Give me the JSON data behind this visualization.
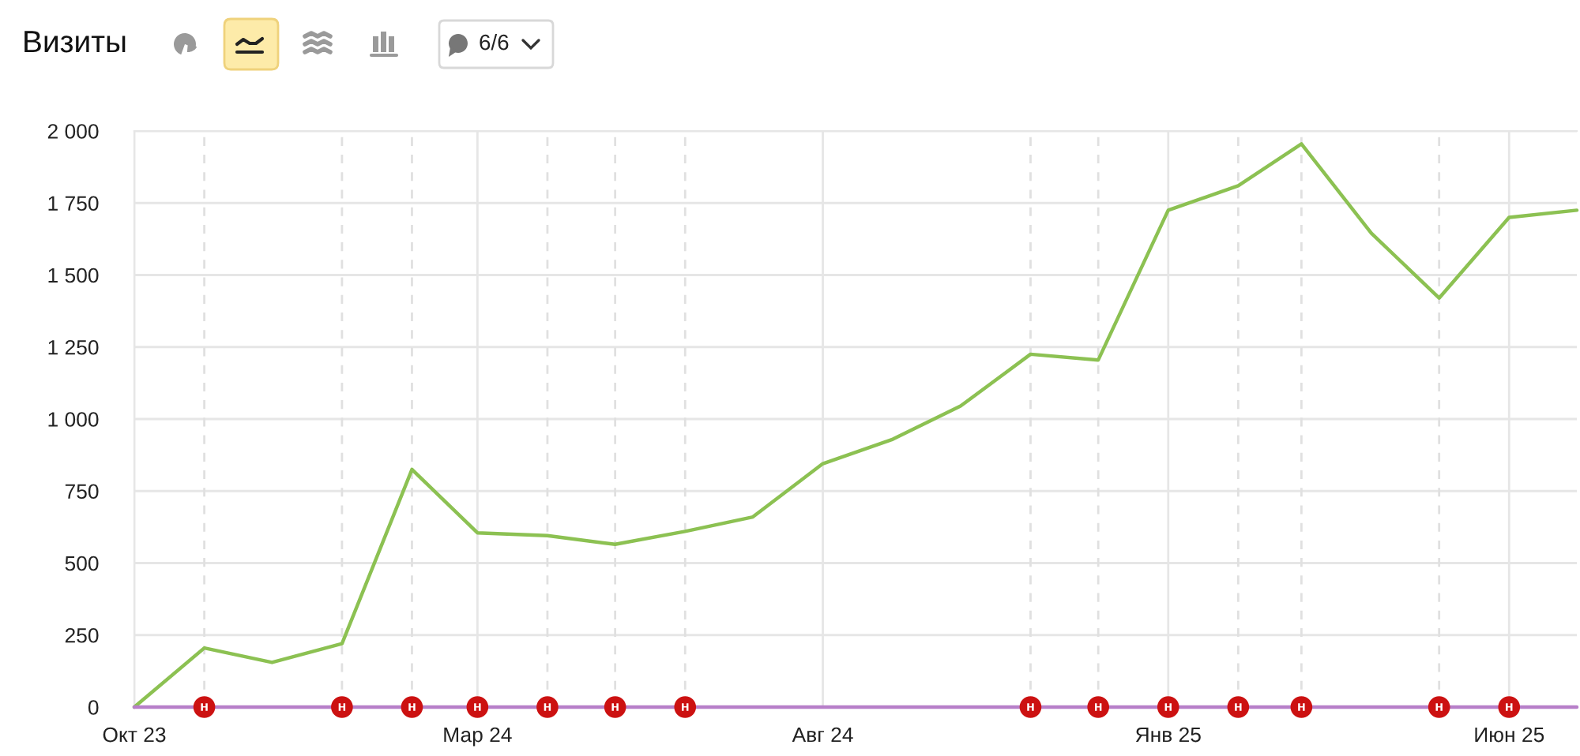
{
  "chart_data": {
    "type": "line",
    "title": "Визиты",
    "x": [
      "2023-10",
      "2023-11",
      "2023-12",
      "2024-01",
      "2024-02",
      "2024-03",
      "2024-04",
      "2024-05",
      "2024-06",
      "2024-07",
      "2024-08",
      "2024-09",
      "2024-10",
      "2024-11",
      "2024-12",
      "2025-01",
      "2025-02",
      "2025-03",
      "2025-04",
      "2025-05",
      "2025-06",
      "2025-07"
    ],
    "series": [
      {
        "color": "#8cc152",
        "values": [
          0,
          205,
          155,
          220,
          825,
          605,
          595,
          565,
          610,
          660,
          845,
          930,
          1045,
          1225,
          1205,
          1725,
          1810,
          1955,
          1645,
          1420,
          1700,
          1725
        ]
      },
      {
        "color": "#b77fc9",
        "values": [
          0,
          0,
          0,
          0,
          0,
          0,
          0,
          0,
          0,
          0,
          0,
          0,
          0,
          0,
          0,
          0,
          0,
          0,
          0,
          0,
          0,
          0
        ]
      }
    ],
    "xlim": [
      "2023-10",
      "2025-07"
    ],
    "xticks": [
      {
        "value": "2023-10",
        "label": "Окт 23"
      },
      {
        "value": "2024-03",
        "label": "Мар 24"
      },
      {
        "value": "2024-08",
        "label": "Авг 24"
      },
      {
        "value": "2025-01",
        "label": "Янв 25"
      },
      {
        "value": "2025-06",
        "label": "Июн 25"
      }
    ],
    "ylim": [
      0,
      2000
    ],
    "yticks": [
      0,
      250,
      500,
      750,
      {
        "value": 1000,
        "label": "1 000"
      },
      {
        "value": 1250,
        "label": "1 250"
      },
      {
        "value": 1500,
        "label": "1 500"
      },
      {
        "value": 1750,
        "label": "1 750"
      },
      {
        "value": 2000,
        "label": "2 000"
      }
    ],
    "grid": true,
    "ref_lines": [
      {
        "axis": "x",
        "value": "2023-11",
        "color": "#e0e0e0",
        "line_style": "dashed"
      },
      {
        "axis": "x",
        "value": "2024-01",
        "color": "#e0e0e0",
        "line_style": "dashed"
      },
      {
        "axis": "x",
        "value": "2024-02",
        "color": "#e0e0e0",
        "line_style": "dashed"
      },
      {
        "axis": "x",
        "value": "2024-04",
        "color": "#e0e0e0",
        "line_style": "dashed"
      },
      {
        "axis": "x",
        "value": "2024-05",
        "color": "#e0e0e0",
        "line_style": "dashed"
      },
      {
        "axis": "x",
        "value": "2024-06",
        "color": "#e0e0e0",
        "line_style": "dashed"
      },
      {
        "axis": "x",
        "value": "2024-11",
        "color": "#e0e0e0",
        "line_style": "dashed"
      },
      {
        "axis": "x",
        "value": "2024-12",
        "color": "#e0e0e0",
        "line_style": "dashed"
      },
      {
        "axis": "x",
        "value": "2025-02",
        "color": "#e0e0e0",
        "line_style": "dashed"
      },
      {
        "axis": "x",
        "value": "2025-03",
        "color": "#e0e0e0",
        "line_style": "dashed"
      },
      {
        "axis": "x",
        "value": "2025-05",
        "color": "#e0e0e0",
        "line_style": "dashed"
      }
    ],
    "annotations": [
      {
        "text": "н",
        "x": "2023-11",
        "y": 0
      },
      {
        "text": "н",
        "x": "2024-01",
        "y": 0
      },
      {
        "text": "н",
        "x": "2024-02",
        "y": 0
      },
      {
        "text": "н",
        "x": "2024-03",
        "y": 0
      },
      {
        "text": "н",
        "x": "2024-04",
        "y": 0
      },
      {
        "text": "н",
        "x": "2024-05",
        "y": 0
      },
      {
        "text": "н",
        "x": "2024-06",
        "y": 0
      },
      {
        "text": "н",
        "x": "2024-11",
        "y": 0
      },
      {
        "text": "н",
        "x": "2024-12",
        "y": 0
      },
      {
        "text": "н",
        "x": "2025-01",
        "y": 0
      },
      {
        "text": "н",
        "x": "2025-02",
        "y": 0
      },
      {
        "text": "н",
        "x": "2025-03",
        "y": 0
      },
      {
        "text": "н",
        "x": "2025-05",
        "y": 0
      },
      {
        "text": "н",
        "x": "2025-06",
        "y": 0
      },
      "6/6"
    ]
  }
}
